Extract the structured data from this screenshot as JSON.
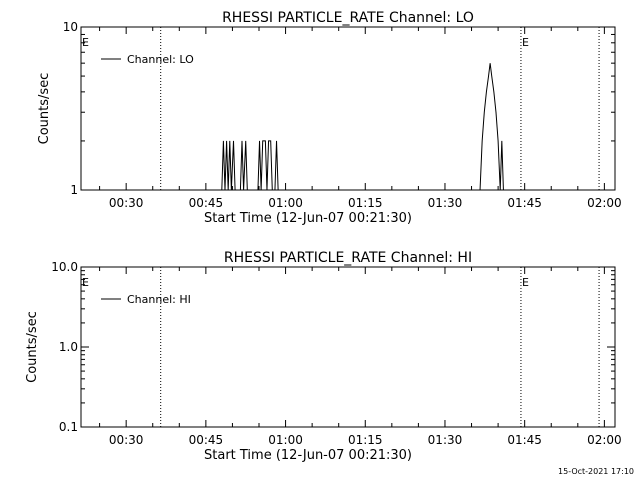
{
  "footer_timestamp": "15-Oct-2021 17:10",
  "chart_data": [
    {
      "type": "line",
      "title": "RHESSI PARTICLE_RATE Channel: LO",
      "xlabel": "Start Time (12-Jun-07 00:21:30)",
      "ylabel": "Counts/sec",
      "yscale": "log",
      "ylim": [
        1,
        10
      ],
      "yticks": [
        1,
        10
      ],
      "ytick_labels": [
        "1",
        "10"
      ],
      "xlim_minutes": [
        21.5,
        122.0
      ],
      "xticks_minutes": [
        30,
        45,
        60,
        75,
        90,
        105,
        120
      ],
      "xtick_labels": [
        "00:30",
        "00:45",
        "01:00",
        "01:15",
        "01:30",
        "01:45",
        "02:00"
      ],
      "legend": {
        "position": "top-left",
        "entries": [
          "Channel: LO"
        ]
      },
      "event_lines_minutes": [
        36.5,
        104.3,
        119.0
      ],
      "event_markers": [
        {
          "x_minutes": 21.5,
          "label": "E"
        },
        {
          "x_minutes": 104.3,
          "label": "E"
        }
      ],
      "series": [
        {
          "name": "Channel: LO",
          "points": [
            [
              48.0,
              1
            ],
            [
              48.3,
              2
            ],
            [
              48.6,
              1
            ],
            [
              48.9,
              2
            ],
            [
              49.2,
              1
            ],
            [
              49.5,
              2
            ],
            [
              49.8,
              1
            ],
            [
              50.2,
              2
            ],
            [
              50.5,
              1
            ],
            [
              51.5,
              1
            ],
            [
              51.8,
              2
            ],
            [
              52.1,
              1
            ],
            [
              52.5,
              2
            ],
            [
              52.8,
              1
            ],
            [
              54.8,
              1
            ],
            [
              55.1,
              2
            ],
            [
              55.4,
              1
            ],
            [
              55.7,
              2
            ],
            [
              56.2,
              2
            ],
            [
              56.5,
              1
            ],
            [
              56.8,
              2
            ],
            [
              57.2,
              2
            ],
            [
              57.5,
              1
            ],
            [
              58.0,
              1
            ],
            [
              58.3,
              2
            ],
            [
              58.6,
              1
            ],
            [
              96.6,
              1
            ],
            [
              97.0,
              2
            ],
            [
              97.4,
              3
            ],
            [
              97.8,
              4
            ],
            [
              98.2,
              5
            ],
            [
              98.5,
              6
            ],
            [
              98.8,
              5
            ],
            [
              99.2,
              4
            ],
            [
              99.6,
              3
            ],
            [
              100.0,
              2
            ],
            [
              100.4,
              1
            ],
            [
              100.7,
              2
            ],
            [
              101.0,
              1
            ]
          ]
        }
      ]
    },
    {
      "type": "line",
      "title": "RHESSI PARTICLE_RATE Channel: HI",
      "xlabel": "Start Time (12-Jun-07 00:21:30)",
      "ylabel": "Counts/sec",
      "yscale": "log",
      "ylim": [
        0.1,
        10
      ],
      "yticks": [
        0.1,
        1,
        10
      ],
      "ytick_labels": [
        "0.1",
        "1.0",
        "10.0"
      ],
      "xlim_minutes": [
        21.5,
        122.0
      ],
      "xticks_minutes": [
        30,
        45,
        60,
        75,
        90,
        105,
        120
      ],
      "xtick_labels": [
        "00:30",
        "00:45",
        "01:00",
        "01:15",
        "01:30",
        "01:45",
        "02:00"
      ],
      "legend": {
        "position": "top-left",
        "entries": [
          "Channel: HI"
        ]
      },
      "event_lines_minutes": [
        36.5,
        104.3,
        119.0
      ],
      "event_markers": [
        {
          "x_minutes": 21.5,
          "label": "E"
        },
        {
          "x_minutes": 104.3,
          "label": "E"
        }
      ],
      "series": [
        {
          "name": "Channel: HI",
          "points": []
        }
      ]
    }
  ]
}
